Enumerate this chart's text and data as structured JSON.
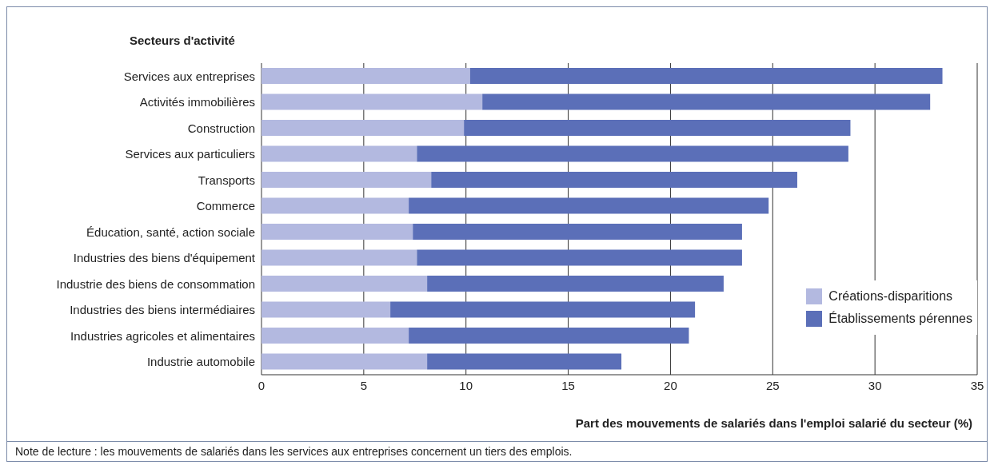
{
  "chart_data": {
    "type": "bar",
    "orientation": "horizontal",
    "stacked": true,
    "ylabel": "Secteurs d'activité",
    "xlabel": "Part des mouvements de salariés dans l'emploi salarié du secteur (%)",
    "categories": [
      "Services aux entreprises",
      "Activités immobilières",
      "Construction",
      "Services aux particuliers",
      "Transports",
      "Commerce",
      "Éducation, santé, action sociale",
      "Industries des biens d'équipement",
      "Industrie des biens de consommation",
      "Industries des biens intermédiaires",
      "Industries agricoles et alimentaires",
      "Industrie automobile"
    ],
    "series": [
      {
        "name": "Créations-disparitions",
        "color": "#b3b9e0",
        "values": [
          10.2,
          10.8,
          9.9,
          7.6,
          8.3,
          7.2,
          7.4,
          7.6,
          8.1,
          6.3,
          7.2,
          8.1
        ]
      },
      {
        "name": "Établissements pérennes",
        "color": "#5b6fb8",
        "values": [
          23.1,
          21.9,
          18.9,
          21.1,
          17.9,
          17.6,
          16.1,
          15.9,
          14.5,
          14.9,
          13.7,
          9.5
        ]
      }
    ],
    "xlim": [
      0,
      35
    ],
    "xticks": [
      0,
      5,
      10,
      15,
      20,
      25,
      30,
      35
    ],
    "grid": "x",
    "legend": "bottom right",
    "annotations": [
      "Note de lecture : les mouvements de salariés dans les services aux entreprises concernent un tiers des emplois."
    ]
  }
}
